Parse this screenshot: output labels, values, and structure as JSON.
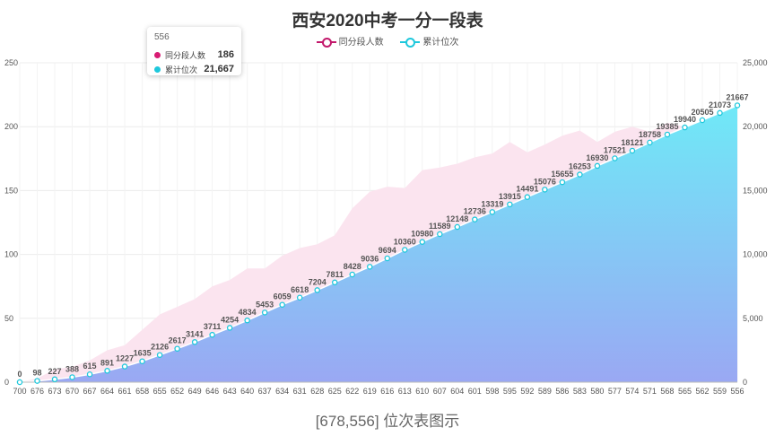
{
  "title": "西安2020中考一分一段表",
  "caption": "[678,556] 位次表图示",
  "legend": [
    {
      "name": "同分段人数",
      "color": "#d81b73"
    },
    {
      "name": "累计位次",
      "color": "#1ec8dc"
    }
  ],
  "tooltip": {
    "title": "556",
    "rows": [
      {
        "name": "同分段人数",
        "value": "186",
        "color": "#d81b73"
      },
      {
        "name": "累计位次",
        "value": "21,667",
        "color": "#1ec8dc"
      }
    ]
  },
  "chart_data": {
    "type": "area",
    "x_categories": [
      "700",
      "676",
      "673",
      "670",
      "667",
      "664",
      "661",
      "658",
      "655",
      "652",
      "649",
      "646",
      "643",
      "640",
      "637",
      "634",
      "631",
      "628",
      "625",
      "622",
      "619",
      "616",
      "613",
      "610",
      "607",
      "604",
      "601",
      "598",
      "595",
      "592",
      "589",
      "586",
      "583",
      "580",
      "577",
      "574",
      "571",
      "568",
      "565",
      "562",
      "559",
      "556"
    ],
    "y_left": {
      "range": [
        0,
        250
      ],
      "ticks": [
        0,
        50,
        100,
        150,
        200,
        250
      ]
    },
    "y_right": {
      "range": [
        0,
        25000
      ],
      "ticks": [
        "0",
        "5,000",
        "10,000",
        "15,000",
        "20,000",
        "25,000"
      ]
    },
    "series": [
      {
        "name": "同分段人数",
        "axis": "left",
        "color": "#d81b73",
        "fill": "#fbe4ef",
        "values": [
          0,
          3,
          10,
          12,
          17,
          25,
          29,
          41,
          53,
          59,
          65,
          75,
          80,
          89,
          89,
          99,
          105,
          108,
          115,
          136,
          149,
          153,
          152,
          166,
          168,
          171,
          176,
          179,
          188,
          180,
          186,
          193,
          197,
          188,
          196,
          200,
          196,
          203,
          200,
          197,
          200,
          186
        ]
      },
      {
        "name": "累计位次",
        "axis": "right",
        "color": "#1ec8dc",
        "values": [
          0,
          98,
          227,
          388,
          615,
          891,
          1227,
          1635,
          2126,
          2617,
          3141,
          3711,
          4254,
          4834,
          5453,
          6059,
          6618,
          7204,
          7811,
          8428,
          9036,
          9694,
          10360,
          10980,
          11589,
          12148,
          12736,
          13319,
          13915,
          14491,
          15076,
          15655,
          16253,
          16930,
          17521,
          18121,
          18758,
          19385,
          19940,
          20505,
          21073,
          21667
        ]
      }
    ]
  }
}
